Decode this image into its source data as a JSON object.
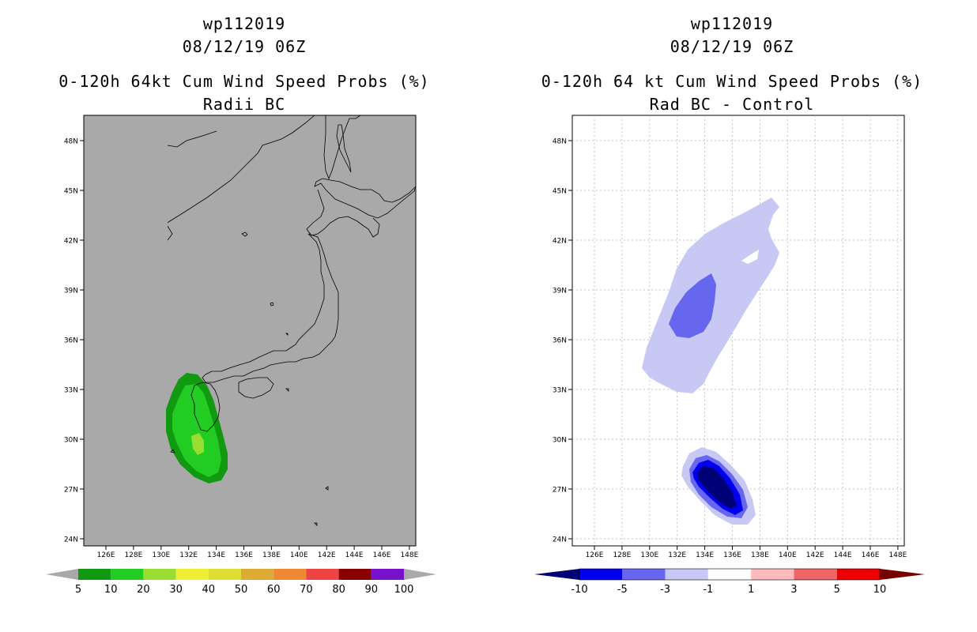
{
  "left_panel": {
    "storm_id": "wp112019",
    "datetime": "08/12/19 06Z",
    "title": "0-120h 64kt Cum Wind Speed Probs (%)",
    "subtitle": "Radii BC",
    "background": "#a9a9a9",
    "legend": {
      "labels": [
        "5",
        "10",
        "20",
        "30",
        "40",
        "50",
        "60",
        "70",
        "80",
        "90",
        "100"
      ],
      "colors": [
        "#119911",
        "#22cc22",
        "#99dd33",
        "#eeee33",
        "#dddd33",
        "#ddaa33",
        "#ee8833",
        "#ee4444",
        "#880000",
        "#7711cc"
      ]
    }
  },
  "right_panel": {
    "storm_id": "wp112019",
    "datetime": "08/12/19 06Z",
    "title": "0-120h 64 kt Cum Wind Speed Probs (%)",
    "subtitle": "Rad BC - Control",
    "background": "#ffffff",
    "legend": {
      "labels": [
        "-10",
        "-5",
        "-3",
        "-1",
        "1",
        "3",
        "5",
        "10"
      ],
      "colors": [
        "#0000ee",
        "#6666ee",
        "#c8c8f5",
        "#ffffff",
        "#ffbbbb",
        "#ee6666",
        "#ee0000"
      ],
      "end_left": "#000077",
      "end_right": "#770000"
    }
  },
  "axes": {
    "lat_labels": [
      "48N",
      "45N",
      "42N",
      "39N",
      "36N",
      "33N",
      "30N",
      "27N",
      "24N"
    ],
    "lon_labels": [
      "126E",
      "128E",
      "130E",
      "132E",
      "134E",
      "136E",
      "138E",
      "140E",
      "142E",
      "144E",
      "146E",
      "148E"
    ]
  }
}
